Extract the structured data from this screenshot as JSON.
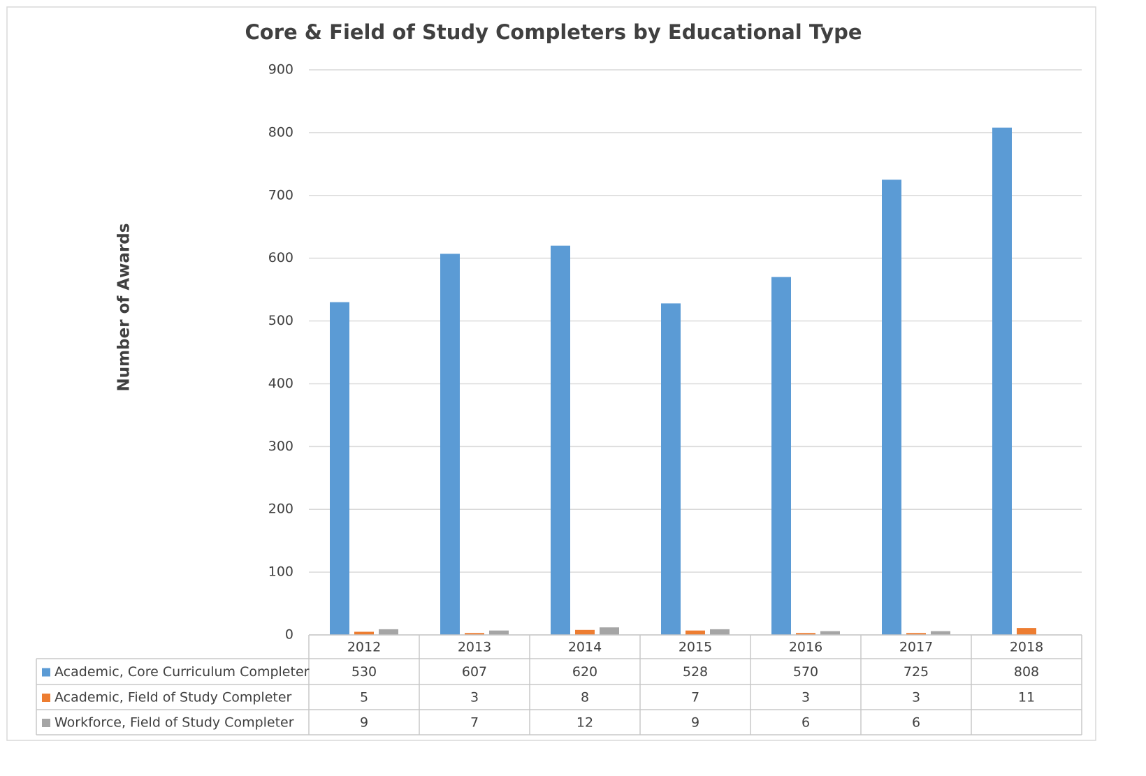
{
  "chart_data": {
    "type": "bar",
    "title": "Core & Field of Study Completers by Educational Type",
    "y_label": "Number of Awards",
    "categories": [
      "2012",
      "2013",
      "2014",
      "2015",
      "2016",
      "2017",
      "2018"
    ],
    "series": [
      {
        "name": "Academic, Core Curriculum Completer",
        "color": "#5b9bd5",
        "values": [
          530,
          607,
          620,
          528,
          570,
          725,
          808
        ]
      },
      {
        "name": "Academic, Field of Study Completer",
        "color": "#ed7d31",
        "values": [
          5,
          3,
          8,
          7,
          3,
          3,
          11
        ]
      },
      {
        "name": "Workforce, Field of Study Completer",
        "color": "#a5a5a5",
        "values": [
          9,
          7,
          12,
          9,
          6,
          6,
          null
        ]
      }
    ],
    "ylim": [
      0,
      900
    ],
    "yticks": [
      0,
      100,
      200,
      300,
      400,
      500,
      600,
      700,
      800,
      900
    ],
    "grid": true
  }
}
